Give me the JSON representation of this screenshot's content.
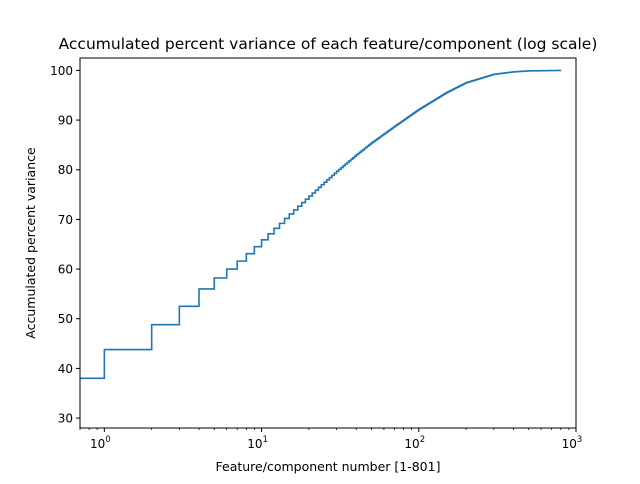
{
  "chart_data": {
    "type": "line",
    "title": "Accumulated percent variance of each feature/component (log scale)",
    "xlabel": "Feature/component number [1-801]",
    "ylabel": "Accumulated percent variance",
    "xscale": "log",
    "xlim": [
      0.7,
      1000
    ],
    "ylim": [
      28,
      102.5
    ],
    "grid": false,
    "legend": "none",
    "line_color": "#1f77b4",
    "x_ticks": [
      {
        "base": "10",
        "exp": "0"
      },
      {
        "base": "10",
        "exp": "1"
      },
      {
        "base": "10",
        "exp": "2"
      },
      {
        "base": "10",
        "exp": "3"
      }
    ],
    "y_ticks": [
      "30",
      "40",
      "50",
      "60",
      "70",
      "80",
      "90",
      "100"
    ],
    "step_points": [
      [
        0,
        38.0
      ],
      [
        1,
        43.8
      ],
      [
        2,
        48.8
      ],
      [
        3,
        52.5
      ],
      [
        4,
        56.0
      ],
      [
        5,
        58.2
      ],
      [
        6,
        60.0
      ],
      [
        7,
        61.6
      ],
      [
        8,
        63.1
      ],
      [
        9,
        64.5
      ],
      [
        10,
        65.9
      ],
      [
        11,
        67.1
      ],
      [
        12,
        68.2
      ],
      [
        13,
        69.2
      ],
      [
        14,
        70.2
      ],
      [
        15,
        71.1
      ],
      [
        16,
        71.9
      ],
      [
        18,
        73.4
      ],
      [
        20,
        74.7
      ],
      [
        25,
        77.5
      ],
      [
        30,
        79.7
      ],
      [
        40,
        83.0
      ],
      [
        50,
        85.4
      ],
      [
        70,
        88.7
      ],
      [
        100,
        92.1
      ],
      [
        150,
        95.5
      ],
      [
        200,
        97.5
      ],
      [
        300,
        99.2
      ],
      [
        400,
        99.7
      ],
      [
        500,
        99.9
      ],
      [
        801,
        100.0
      ]
    ]
  }
}
